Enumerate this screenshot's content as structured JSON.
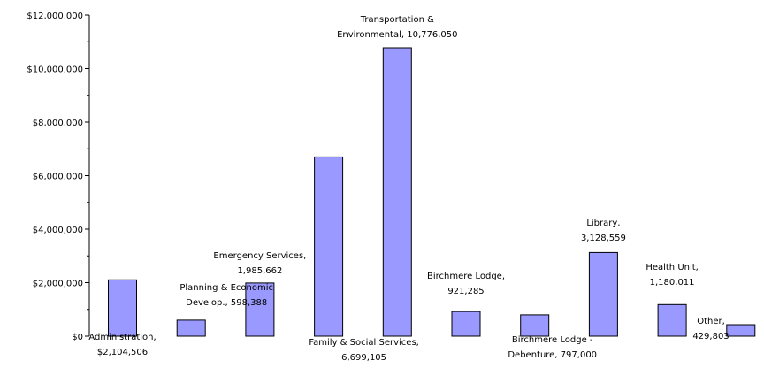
{
  "chart_data": {
    "type": "bar",
    "title": "",
    "xlabel": "",
    "ylabel": "",
    "ylim": [
      0,
      12000000
    ],
    "y_ticks": [
      "$0",
      "$2,000,000",
      "$4,000,000",
      "$6,000,000",
      "$8,000,000",
      "$10,000,000",
      "$12,000,000"
    ],
    "y_tick_values": [
      0,
      2000000,
      4000000,
      6000000,
      8000000,
      10000000,
      12000000
    ],
    "grid": false,
    "bar_color": "#9999ff",
    "categories": [
      "Administration",
      "Planning & Economic Develop.",
      "Emergency Services",
      "Family & Social Services",
      "Transportation & Environmental",
      "Birchmere Lodge",
      "Birchmere Lodge - Debenture",
      "Library",
      "Health Unit",
      "Other"
    ],
    "values": [
      2104506,
      598388,
      1985662,
      6699105,
      10776050,
      921285,
      797000,
      3128559,
      1180011,
      429803
    ],
    "data_labels": [
      [
        "Administration,",
        "$2,104,506"
      ],
      [
        "Planning & Economic",
        "Develop., 598,388"
      ],
      [
        "Emergency Services,",
        "1,985,662"
      ],
      [
        "Family & Social Services,",
        "6,699,105"
      ],
      [
        "Transportation &",
        "Environmental, 10,776,050"
      ],
      [
        "Birchmere Lodge,",
        "921,285"
      ],
      [
        "Birchmere Lodge -",
        "Debenture, 797,000"
      ],
      [
        "Library,",
        "3,128,559"
      ],
      [
        "Health Unit,",
        "1,180,011"
      ],
      [
        "Other,",
        "429,803"
      ]
    ]
  }
}
